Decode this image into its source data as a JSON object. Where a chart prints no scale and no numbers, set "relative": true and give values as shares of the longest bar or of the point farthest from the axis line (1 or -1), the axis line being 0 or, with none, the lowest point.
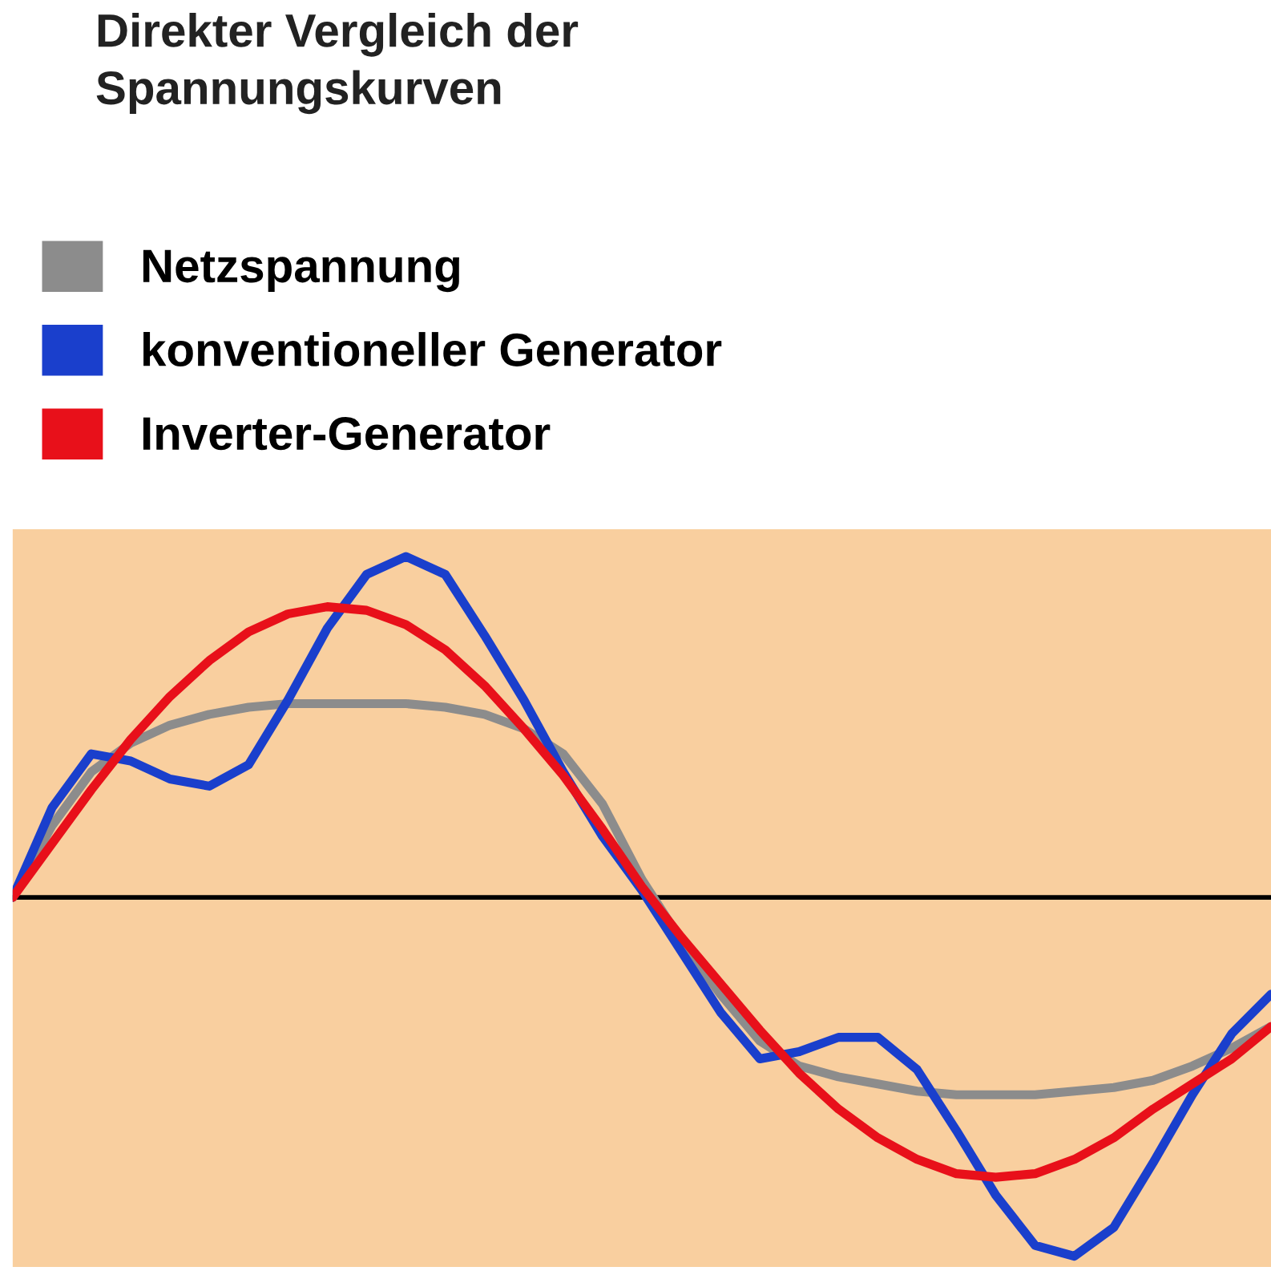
{
  "chart_data": {
    "type": "line",
    "relative": true,
    "title": "Direkter Vergleich der\nSpannungskurven",
    "legend": "top left",
    "marker": "none",
    "line_style": "solid",
    "categories": [
      null,
      null,
      null,
      null,
      null,
      null,
      null,
      null,
      null,
      null,
      null,
      null,
      null,
      null,
      null,
      null,
      null,
      null,
      null,
      null,
      null,
      null,
      null,
      null,
      null,
      null,
      null,
      null,
      null,
      null,
      null,
      null,
      null
    ],
    "series": [
      {
        "name": "Netzspannung",
        "color": "#8c8c8c",
        "values": [
          0,
          0.2,
          0.35,
          0.43,
          0.48,
          0.51,
          0.53,
          0.54,
          0.54,
          0.54,
          0.54,
          0.53,
          0.51,
          0.47,
          0.4,
          0.26,
          0.05,
          -0.12,
          -0.27,
          -0.4,
          -0.47,
          -0.5,
          -0.52,
          -0.54,
          -0.55,
          -0.55,
          -0.55,
          -0.54,
          -0.53,
          -0.51,
          -0.47,
          -0.42,
          -0.36
        ]
      },
      {
        "name": "konventioneller Generator",
        "color": "#1a3fcc",
        "values": [
          0,
          0.25,
          0.4,
          0.38,
          0.33,
          0.31,
          0.37,
          0.55,
          0.75,
          0.9,
          0.95,
          0.9,
          0.73,
          0.55,
          0.35,
          0.17,
          0.02,
          -0.15,
          -0.32,
          -0.45,
          -0.43,
          -0.39,
          -0.39,
          -0.48,
          -0.65,
          -0.83,
          -0.97,
          -1,
          -0.92,
          -0.74,
          -0.55,
          -0.38,
          -0.27
        ]
      },
      {
        "name": "Inverter-Generator",
        "color": "#e8101a",
        "values": [
          0,
          0.15,
          0.3,
          0.44,
          0.56,
          0.66,
          0.74,
          0.79,
          0.81,
          0.8,
          0.76,
          0.69,
          0.59,
          0.47,
          0.34,
          0.19,
          0.03,
          -0.11,
          -0.24,
          -0.37,
          -0.49,
          -0.59,
          -0.67,
          -0.73,
          -0.77,
          -0.78,
          -0.77,
          -0.73,
          -0.67,
          -0.59,
          -0.52,
          -0.45,
          -0.36
        ]
      }
    ]
  }
}
